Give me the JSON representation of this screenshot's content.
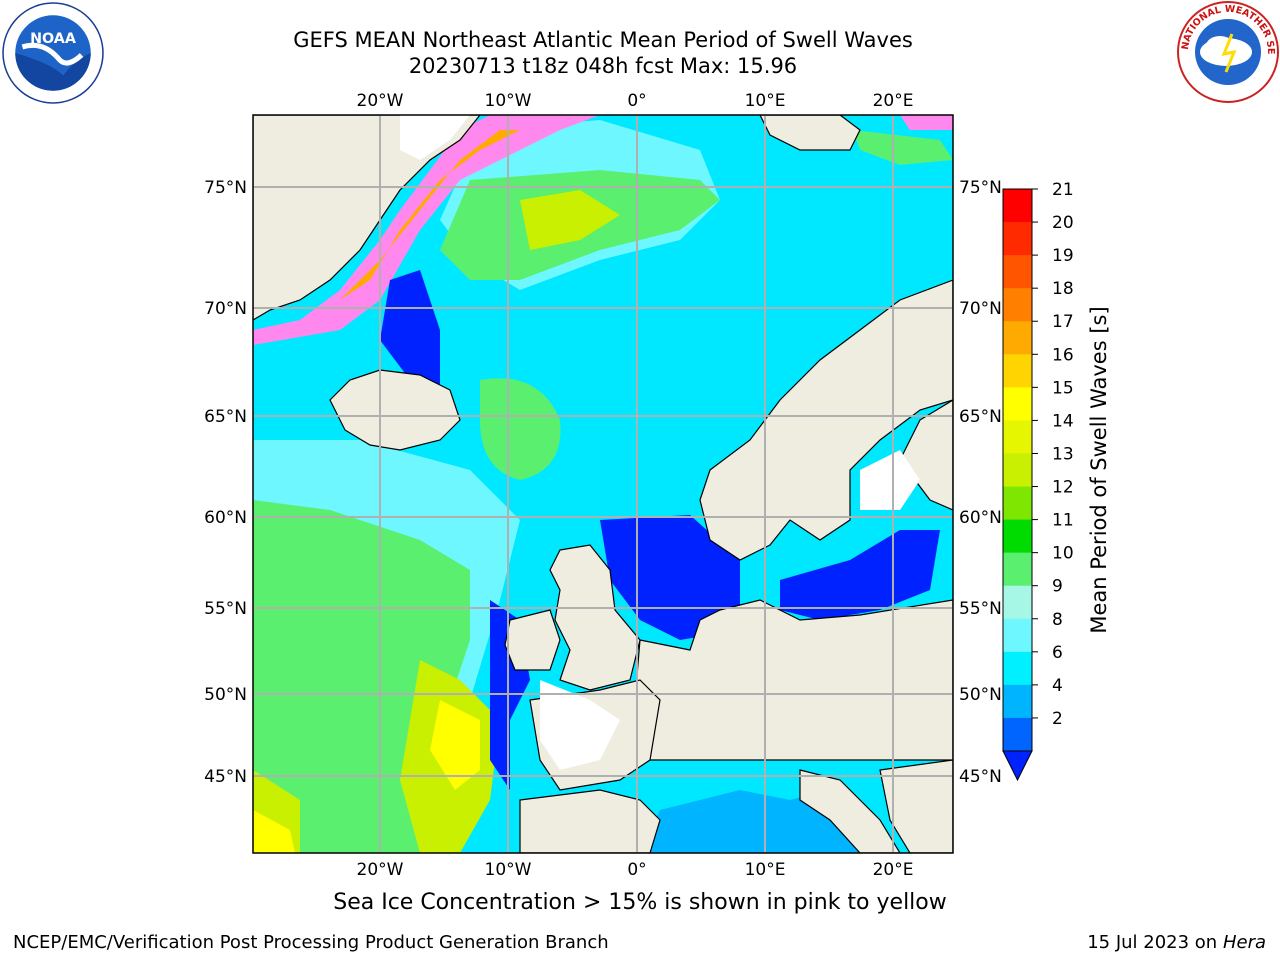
{
  "header": {
    "title_line1": "GEFS MEAN Northeast Atlantic Mean Period of Swell Waves",
    "title_line2": "20230713 t18z 048h fcst   Max: 15.96"
  },
  "logos": {
    "left": "noaa-logo",
    "left_text": "NOAA",
    "right": "nws-logo",
    "right_text": "NATIONAL WEATHER SERVICE"
  },
  "map": {
    "projection": "polar-stereographic",
    "lon_ticks": [
      "20°W",
      "10°W",
      "0°",
      "10°E",
      "20°E"
    ],
    "lat_ticks": [
      "75°N",
      "70°N",
      "65°N",
      "60°N",
      "55°N",
      "50°N",
      "45°N"
    ],
    "land_color": "#efede0",
    "ocean_dominant_color": "#00e8ff",
    "regions": [
      "Greenland",
      "Iceland",
      "Norway",
      "British Isles",
      "France",
      "Iberia",
      "Baltic Sea",
      "North Sea",
      "Mediterranean"
    ]
  },
  "colorbar": {
    "label": "Mean Period of Swell Waves [s]",
    "ticks": [
      "21",
      "20",
      "19",
      "18",
      "17",
      "16",
      "15",
      "14",
      "13",
      "12",
      "11",
      "10",
      "9",
      "8",
      "6",
      "4",
      "2"
    ],
    "colors": [
      "#ff0000",
      "#ff2a00",
      "#ff5500",
      "#ff8000",
      "#ffaa00",
      "#ffd400",
      "#ffff00",
      "#e6f500",
      "#c8f000",
      "#7ee600",
      "#00dc00",
      "#5bef70",
      "#a6f7e6",
      "#6ff7ff",
      "#00f0ff",
      "#00b4ff",
      "#0064ff"
    ],
    "extend_color": "#0022ff"
  },
  "footer": {
    "note": "Sea Ice Concentration > 15% is shown in pink to yellow",
    "credit": "NCEP/EMC/Verification Post Processing Product Generation Branch",
    "date": "15 Jul 2023 on ",
    "machine": "Hera"
  }
}
